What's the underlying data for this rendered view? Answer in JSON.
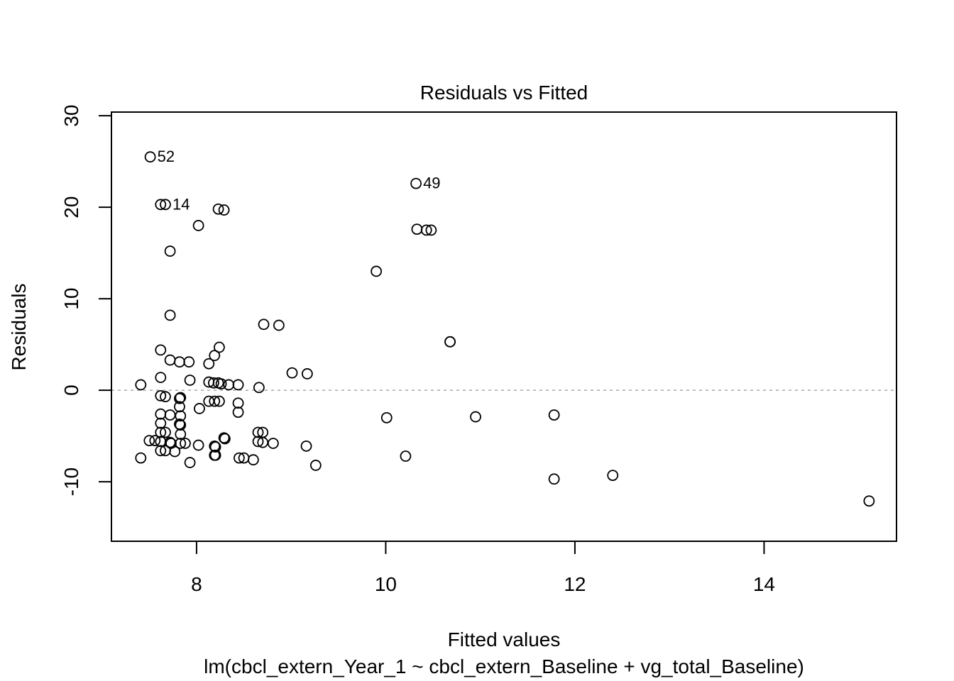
{
  "chart_data": {
    "type": "scatter",
    "title": "Residuals vs Fitted",
    "xlabel": "Fitted values",
    "subtitle": "lm(cbcl_extern_Year_1 ~ cbcl_extern_Baseline + vg_total_Baseline)",
    "ylabel": "Residuals",
    "xlim": [
      7.1,
      15.4
    ],
    "ylim": [
      -16.5,
      30.4
    ],
    "x_ticks": [
      8,
      10,
      12,
      14
    ],
    "y_ticks": [
      -10,
      0,
      10,
      20,
      30
    ],
    "x_tick_labels": [
      "8",
      "10",
      "12",
      "14"
    ],
    "y_tick_labels": [
      "-10",
      "0",
      "10",
      "20",
      "30"
    ],
    "reference_line": {
      "y": 0,
      "style": "dotted",
      "color": "#999999"
    },
    "grid": false,
    "legend": "none",
    "marker": "open-circle",
    "point_labels": [
      {
        "x": 7.51,
        "y": 25.5,
        "label": "52"
      },
      {
        "x": 10.32,
        "y": 22.6,
        "label": "49"
      },
      {
        "x": 7.67,
        "y": 20.3,
        "label": "14"
      }
    ],
    "points": [
      [
        7.51,
        25.5
      ],
      [
        10.32,
        22.6
      ],
      [
        7.62,
        20.3
      ],
      [
        7.67,
        20.3
      ],
      [
        8.23,
        19.8
      ],
      [
        8.29,
        19.7
      ],
      [
        8.02,
        18.0
      ],
      [
        10.33,
        17.6
      ],
      [
        10.43,
        17.5
      ],
      [
        10.48,
        17.5
      ],
      [
        7.72,
        15.2
      ],
      [
        9.9,
        13.0
      ],
      [
        7.72,
        8.2
      ],
      [
        8.71,
        7.2
      ],
      [
        8.87,
        7.1
      ],
      [
        10.68,
        5.3
      ],
      [
        10.68,
        5.3
      ],
      [
        8.24,
        4.7
      ],
      [
        7.62,
        4.4
      ],
      [
        8.19,
        3.8
      ],
      [
        7.72,
        3.3
      ],
      [
        7.82,
        3.1
      ],
      [
        7.92,
        3.1
      ],
      [
        8.13,
        2.9
      ],
      [
        9.01,
        1.9
      ],
      [
        9.17,
        1.8
      ],
      [
        7.62,
        1.4
      ],
      [
        7.93,
        1.1
      ],
      [
        8.13,
        0.9
      ],
      [
        8.18,
        0.8
      ],
      [
        8.23,
        0.8
      ],
      [
        8.26,
        0.7
      ],
      [
        8.34,
        0.6
      ],
      [
        8.44,
        0.6
      ],
      [
        7.41,
        0.6
      ],
      [
        8.66,
        0.3
      ],
      [
        7.62,
        -0.6
      ],
      [
        7.67,
        -0.7
      ],
      [
        7.82,
        -0.9
      ],
      [
        7.83,
        -0.8
      ],
      [
        8.13,
        -1.2
      ],
      [
        8.19,
        -1.2
      ],
      [
        8.24,
        -1.2
      ],
      [
        8.44,
        -1.4
      ],
      [
        7.82,
        -1.8
      ],
      [
        8.03,
        -2.0
      ],
      [
        8.44,
        -2.4
      ],
      [
        7.62,
        -2.6
      ],
      [
        7.72,
        -2.7
      ],
      [
        7.83,
        -2.8
      ],
      [
        11.78,
        -2.7
      ],
      [
        10.95,
        -2.9
      ],
      [
        10.01,
        -3.0
      ],
      [
        7.62,
        -3.6
      ],
      [
        7.82,
        -3.7
      ],
      [
        7.83,
        -3.8
      ],
      [
        7.62,
        -4.6
      ],
      [
        7.67,
        -4.6
      ],
      [
        7.83,
        -4.8
      ],
      [
        8.65,
        -4.6
      ],
      [
        8.7,
        -4.6
      ],
      [
        8.29,
        -5.2
      ],
      [
        8.3,
        -5.3
      ],
      [
        7.5,
        -5.5
      ],
      [
        7.56,
        -5.5
      ],
      [
        7.62,
        -5.6
      ],
      [
        7.72,
        -5.7
      ],
      [
        7.73,
        -5.8
      ],
      [
        7.83,
        -5.8
      ],
      [
        7.88,
        -5.8
      ],
      [
        8.65,
        -5.6
      ],
      [
        8.7,
        -5.7
      ],
      [
        8.81,
        -5.8
      ],
      [
        8.02,
        -6.0
      ],
      [
        8.19,
        -6.1
      ],
      [
        8.2,
        -6.2
      ],
      [
        9.16,
        -6.1
      ],
      [
        7.62,
        -6.6
      ],
      [
        7.67,
        -6.6
      ],
      [
        7.77,
        -6.7
      ],
      [
        8.19,
        -7.1
      ],
      [
        8.2,
        -7.1
      ],
      [
        10.21,
        -7.2
      ],
      [
        7.41,
        -7.4
      ],
      [
        8.45,
        -7.4
      ],
      [
        8.5,
        -7.4
      ],
      [
        8.6,
        -7.6
      ],
      [
        7.93,
        -7.9
      ],
      [
        9.26,
        -8.2
      ],
      [
        12.4,
        -9.3
      ],
      [
        11.78,
        -9.7
      ],
      [
        15.11,
        -12.1
      ]
    ]
  }
}
